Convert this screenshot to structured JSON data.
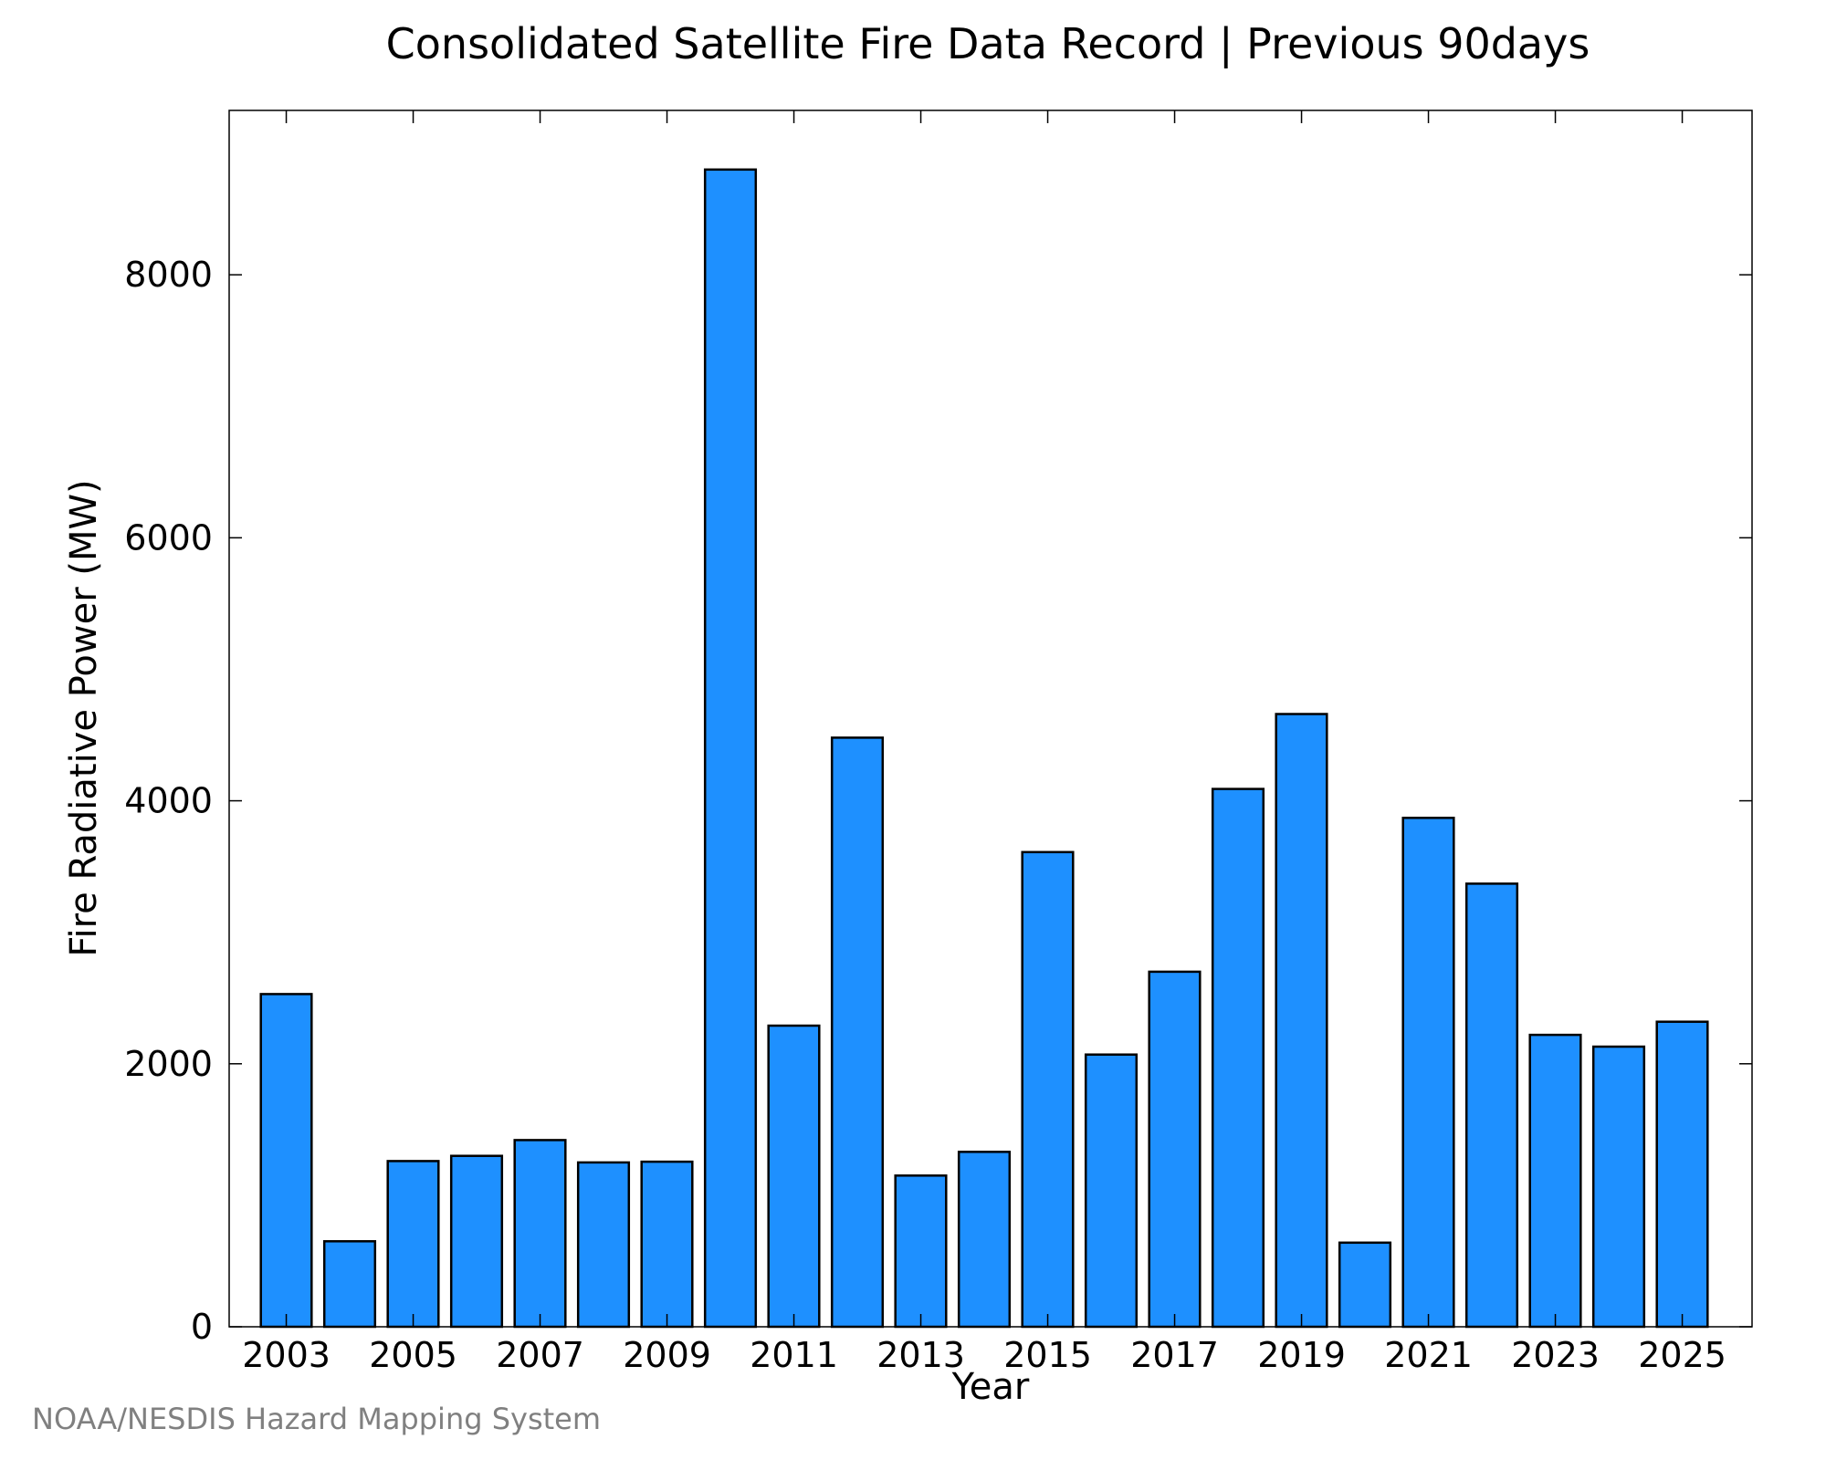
{
  "chart_data": {
    "type": "bar",
    "title": "Consolidated Satellite Fire Data Record | Previous 90days",
    "xlabel": "Year",
    "ylabel": "Fire Radiative Power (MW)",
    "categories": [
      2003,
      2004,
      2005,
      2006,
      2007,
      2008,
      2009,
      2010,
      2011,
      2012,
      2013,
      2014,
      2015,
      2016,
      2017,
      2018,
      2019,
      2020,
      2021,
      2022,
      2023,
      2024,
      2025
    ],
    "values": [
      2530,
      650,
      1260,
      1300,
      1420,
      1250,
      1255,
      8800,
      2290,
      4480,
      1150,
      1330,
      3610,
      2070,
      2700,
      4090,
      4660,
      640,
      3870,
      3370,
      2220,
      2130,
      2320
    ],
    "x_tick_labels": [
      "2003",
      "2005",
      "2007",
      "2009",
      "2011",
      "2013",
      "2015",
      "2017",
      "2019",
      "2021",
      "2023",
      "2025"
    ],
    "y_ticks": [
      0,
      2000,
      4000,
      6000,
      8000
    ],
    "y_tick_labels": [
      "0",
      "2000",
      "4000",
      "6000",
      "8000"
    ],
    "xlim": [
      2002.1,
      2026.1
    ],
    "ylim": [
      0,
      9250
    ],
    "grid": false,
    "legend": "none",
    "bar_color": "#1E90FF",
    "bar_edge_color": "#000000"
  },
  "footer": {
    "credit": "NOAA/NESDIS Hazard Mapping System"
  }
}
